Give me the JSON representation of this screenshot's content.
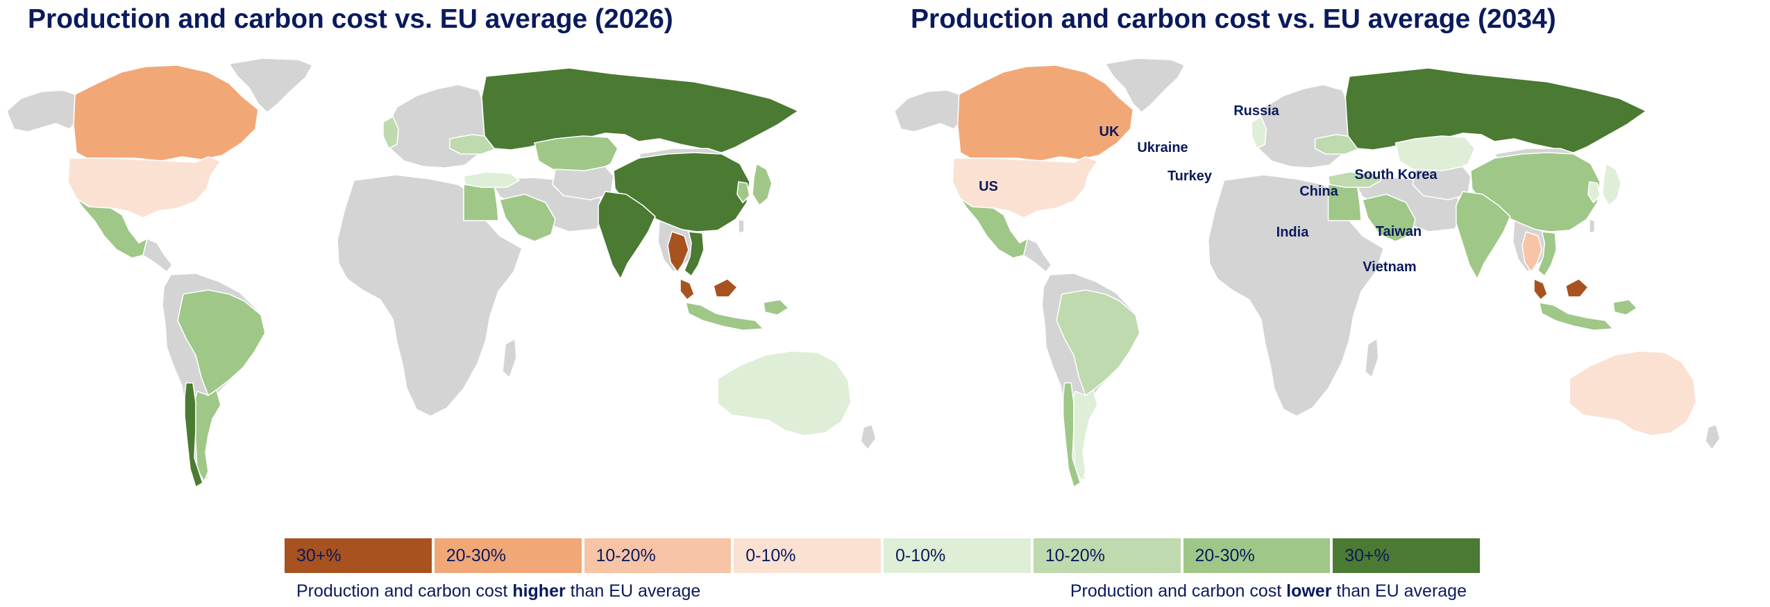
{
  "colors": {
    "higher_30_plus": "#a8521f",
    "higher_20_30": "#f2a777",
    "higher_10_20": "#f7c4a6",
    "higher_0_10": "#fae1d2",
    "lower_0_10": "#dfeed6",
    "lower_10_20": "#bedaae",
    "lower_20_30": "#9fc788",
    "lower_30_plus": "#4b7a32",
    "no_data": "#d4d4d4",
    "title_text": "#0a1a5c"
  },
  "maps": [
    {
      "title": "Production and carbon cost vs. EU average (2026)",
      "country_labels": [],
      "regions": {
        "canada": "higher_20_30",
        "usa": "higher_0_10",
        "mexico": "lower_20_30",
        "brazil": "lower_20_30",
        "argentina": "lower_20_30",
        "chile": "lower_30_plus",
        "uk": "lower_10_20",
        "ukraine": "lower_10_20",
        "turkey": "lower_0_10",
        "egypt": "lower_20_30",
        "saudi_arabia": "lower_20_30",
        "russia": "lower_30_plus",
        "kazakhstan": "lower_20_30",
        "china": "lower_30_plus",
        "india": "lower_30_plus",
        "japan": "lower_20_30",
        "south_korea": "lower_20_30",
        "thailand": "higher_30_plus",
        "vietnam": "lower_30_plus",
        "malaysia": "higher_30_plus",
        "indonesia": "lower_20_30",
        "australia": "lower_0_10"
      }
    },
    {
      "title": "Production and carbon cost vs. EU average (2034)",
      "country_labels": [
        {
          "text": "Russia",
          "region": "russia"
        },
        {
          "text": "UK",
          "region": "uk"
        },
        {
          "text": "Ukraine",
          "region": "ukraine"
        },
        {
          "text": "Turkey",
          "region": "turkey"
        },
        {
          "text": "US",
          "region": "usa"
        },
        {
          "text": "China",
          "region": "china"
        },
        {
          "text": "South Korea",
          "region": "south_korea"
        },
        {
          "text": "India",
          "region": "india"
        },
        {
          "text": "Taiwan",
          "region": "taiwan"
        },
        {
          "text": "Vietnam",
          "region": "vietnam"
        }
      ],
      "regions": {
        "canada": "higher_20_30",
        "usa": "higher_0_10",
        "mexico": "lower_20_30",
        "brazil": "lower_10_20",
        "argentina": "lower_0_10",
        "chile": "lower_20_30",
        "uk": "lower_0_10",
        "ukraine": "lower_10_20",
        "turkey": "lower_10_20",
        "egypt": "lower_20_30",
        "saudi_arabia": "lower_20_30",
        "russia": "lower_30_plus",
        "kazakhstan": "lower_0_10",
        "china": "lower_20_30",
        "india": "lower_20_30",
        "japan": "lower_0_10",
        "south_korea": "lower_0_10",
        "thailand": "higher_10_20",
        "vietnam": "lower_20_30",
        "malaysia": "higher_30_plus",
        "indonesia": "lower_20_30",
        "australia": "higher_0_10"
      }
    }
  ],
  "legend": {
    "items": [
      {
        "label": "30+%",
        "color_key": "higher_30_plus"
      },
      {
        "label": "20-30%",
        "color_key": "higher_20_30"
      },
      {
        "label": "10-20%",
        "color_key": "higher_10_20"
      },
      {
        "label": "0-10%",
        "color_key": "higher_0_10"
      },
      {
        "label": "0-10%",
        "color_key": "lower_0_10"
      },
      {
        "label": "10-20%",
        "color_key": "lower_10_20"
      },
      {
        "label": "20-30%",
        "color_key": "lower_20_30"
      },
      {
        "label": "30+%",
        "color_key": "lower_30_plus"
      }
    ],
    "note_higher": {
      "before": "Production and carbon cost ",
      "emphasis": "higher",
      "after": " than EU average"
    },
    "note_lower": {
      "before": "Production and carbon cost ",
      "emphasis": "lower",
      "after": " than EU average"
    }
  }
}
